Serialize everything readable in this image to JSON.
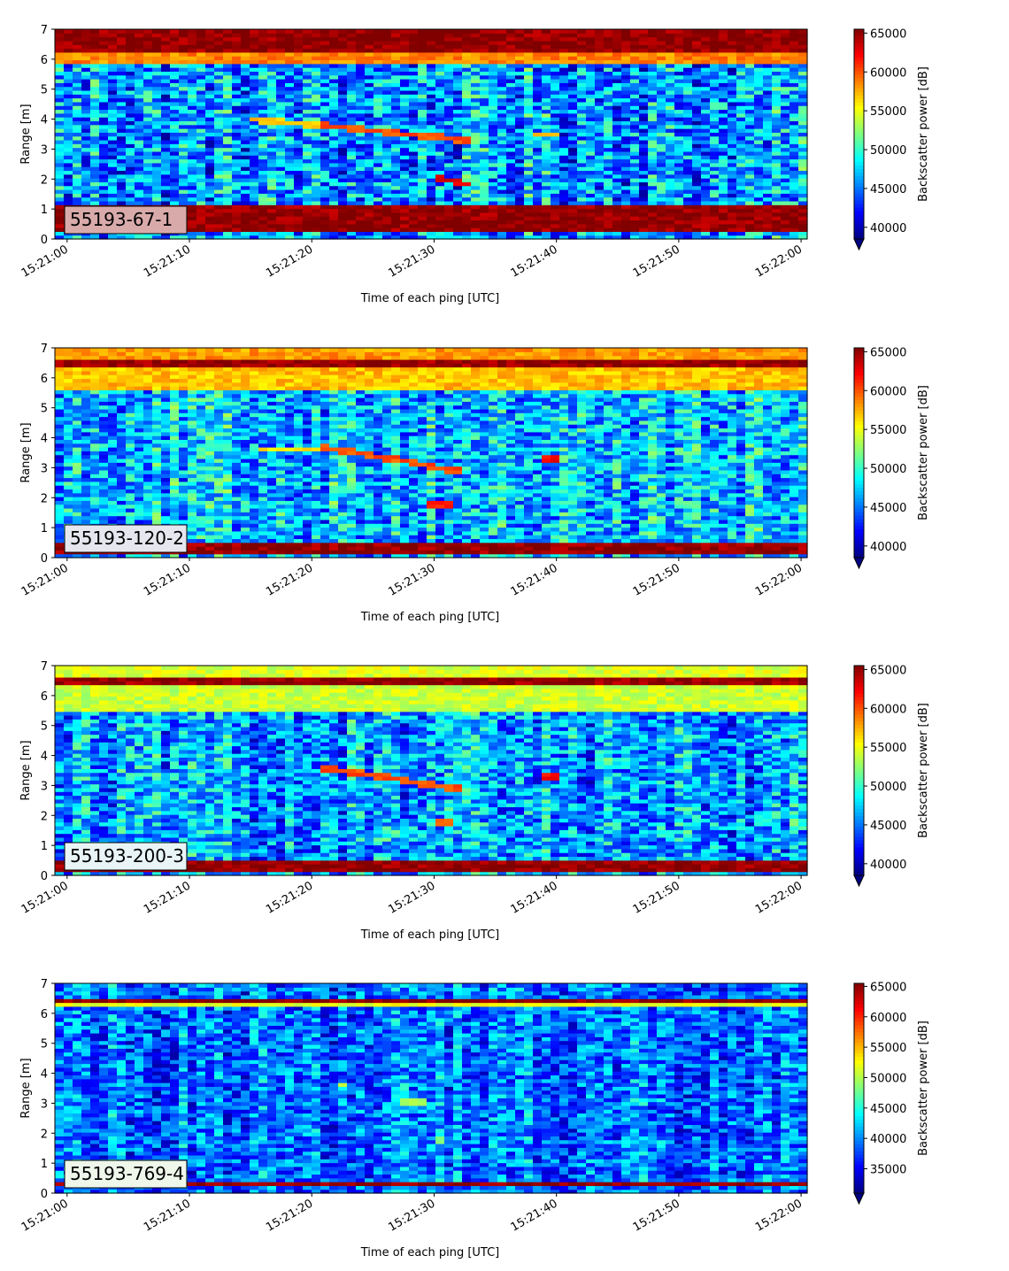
{
  "figure": {
    "background": "#ffffff"
  },
  "chart_data": [
    {
      "type": "heatmap",
      "panel_label": "55193-67-1",
      "label_box_color": "#d9aaaa",
      "xlabel": "Time of each ping [UTC]",
      "ylabel": "Range [m]",
      "x_ticks": [
        "15:21:00",
        "15:21:10",
        "15:21:20",
        "15:21:30",
        "15:21:40",
        "15:21:50",
        "15:22:00"
      ],
      "x_range": [
        "15:21:00",
        "15:22:00"
      ],
      "y_ticks": [
        0,
        1,
        2,
        3,
        4,
        5,
        6,
        7
      ],
      "ylim": [
        0,
        7
      ],
      "colorbar": {
        "label": "Backscatter power [dB]",
        "colormap": "jet",
        "extend": "min",
        "range": [
          38500,
          65500
        ],
        "ticks": [
          40000,
          45000,
          50000,
          55000,
          60000,
          65000
        ]
      },
      "bands": [
        {
          "from": 0.2,
          "to": 1.1,
          "value": 65000
        },
        {
          "from": 6.2,
          "to": 7.0,
          "value": 65000
        },
        {
          "from": 5.8,
          "to": 6.2,
          "value": 58500
        }
      ],
      "background": {
        "mean": 46000,
        "spread": 5000
      },
      "features": [
        {
          "x": [
            15.0,
            21.0
          ],
          "y": [
            4.0,
            3.8
          ],
          "value": 57000
        },
        {
          "x": [
            21.0,
            33.0
          ],
          "y": [
            3.8,
            3.3
          ],
          "value": 60000
        },
        {
          "x": [
            30.0,
            33.0
          ],
          "y": [
            2.1,
            1.8
          ],
          "value": 63000
        },
        {
          "x": [
            38.0,
            40.5
          ],
          "y": [
            3.5,
            3.5
          ],
          "value": 57500
        }
      ]
    },
    {
      "type": "heatmap",
      "panel_label": "55193-120-2",
      "label_box_color": "#e6e6ef",
      "xlabel": "Time of each ping [UTC]",
      "ylabel": "Range [m]",
      "x_ticks": [
        "15:21:00",
        "15:21:10",
        "15:21:20",
        "15:21:30",
        "15:21:40",
        "15:21:50",
        "15:22:00"
      ],
      "x_range": [
        "15:21:00",
        "15:22:00"
      ],
      "y_ticks": [
        0,
        1,
        2,
        3,
        4,
        5,
        6,
        7
      ],
      "ylim": [
        0,
        7
      ],
      "colorbar": {
        "label": "Backscatter power [dB]",
        "colormap": "jet",
        "extend": "min",
        "range": [
          38500,
          65500
        ],
        "ticks": [
          40000,
          45000,
          50000,
          55000,
          60000,
          65000
        ]
      },
      "bands": [
        {
          "from": 0.1,
          "to": 0.5,
          "value": 65000
        },
        {
          "from": 6.3,
          "to": 6.6,
          "value": 65000
        },
        {
          "from": 5.6,
          "to": 6.3,
          "value": 57000
        },
        {
          "from": 6.6,
          "to": 7.0,
          "value": 58000
        }
      ],
      "background": {
        "mean": 47000,
        "spread": 4500
      },
      "features": [
        {
          "x": [
            16.0,
            21.0
          ],
          "y": [
            3.6,
            3.6
          ],
          "value": 56000
        },
        {
          "x": [
            21.0,
            32.0
          ],
          "y": [
            3.7,
            2.9
          ],
          "value": 60000
        },
        {
          "x": [
            29.5,
            31.5
          ],
          "y": [
            1.8,
            1.8
          ],
          "value": 61000
        },
        {
          "x": [
            38.5,
            40.5
          ],
          "y": [
            3.3,
            3.3
          ],
          "value": 62000
        }
      ]
    },
    {
      "type": "heatmap",
      "panel_label": "55193-200-3",
      "label_box_color": "#e8f4f6",
      "xlabel": "Time of each ping [UTC]",
      "ylabel": "Range [m]",
      "x_ticks": [
        "15:21:00",
        "15:21:10",
        "15:21:20",
        "15:21:30",
        "15:21:40",
        "15:21:50",
        "15:22:00"
      ],
      "x_range": [
        "15:21:00",
        "15:22:00"
      ],
      "y_ticks": [
        0,
        1,
        2,
        3,
        4,
        5,
        6,
        7
      ],
      "ylim": [
        0,
        7
      ],
      "colorbar": {
        "label": "Backscatter power [dB]",
        "colormap": "jet",
        "extend": "min",
        "range": [
          38500,
          65500
        ],
        "ticks": [
          40000,
          45000,
          50000,
          55000,
          60000,
          65000
        ]
      },
      "bands": [
        {
          "from": 0.15,
          "to": 0.45,
          "value": 65000
        },
        {
          "from": 6.3,
          "to": 6.6,
          "value": 65000
        },
        {
          "from": 5.5,
          "to": 6.3,
          "value": 54000
        },
        {
          "from": 6.6,
          "to": 7.0,
          "value": 54500
        }
      ],
      "background": {
        "mean": 46000,
        "spread": 4500
      },
      "features": [
        {
          "x": [
            21.0,
            32.0
          ],
          "y": [
            3.6,
            2.9
          ],
          "value": 60000
        },
        {
          "x": [
            30.0,
            31.5
          ],
          "y": [
            1.8,
            1.8
          ],
          "value": 60000
        },
        {
          "x": [
            38.5,
            40.0
          ],
          "y": [
            3.3,
            3.3
          ],
          "value": 62000
        }
      ]
    },
    {
      "type": "heatmap",
      "panel_label": "55193-769-4",
      "label_box_color": "#eef7ea",
      "xlabel": "Time of each ping [UTC]",
      "ylabel": "Range [m]",
      "x_ticks": [
        "15:21:00",
        "15:21:10",
        "15:21:20",
        "15:21:30",
        "15:21:40",
        "15:21:50",
        "15:22:00"
      ],
      "x_range": [
        "15:21:00",
        "15:22:00"
      ],
      "y_ticks": [
        0,
        1,
        2,
        3,
        4,
        5,
        6,
        7
      ],
      "ylim": [
        0,
        7
      ],
      "colorbar": {
        "label": "Backscatter power [dB]",
        "colormap": "jet",
        "extend": "min",
        "range": [
          31000,
          65500
        ],
        "ticks": [
          35000,
          40000,
          45000,
          50000,
          55000,
          60000,
          65000
        ]
      },
      "bands": [
        {
          "from": 0.2,
          "to": 0.35,
          "value": 65000
        },
        {
          "from": 6.35,
          "to": 6.5,
          "value": 65000
        },
        {
          "from": 6.2,
          "to": 6.35,
          "value": 52000
        }
      ],
      "background": {
        "mean": 39000,
        "spread": 5000
      },
      "features": [
        {
          "x": [
            22.0,
            23.0
          ],
          "y": [
            3.6,
            3.6
          ],
          "value": 50000
        },
        {
          "x": [
            27.0,
            29.5
          ],
          "y": [
            3.1,
            3.0
          ],
          "value": 50000
        },
        {
          "x": [
            30.0,
            31.0
          ],
          "y": [
            1.75,
            1.75
          ],
          "value": 49000
        }
      ]
    }
  ]
}
